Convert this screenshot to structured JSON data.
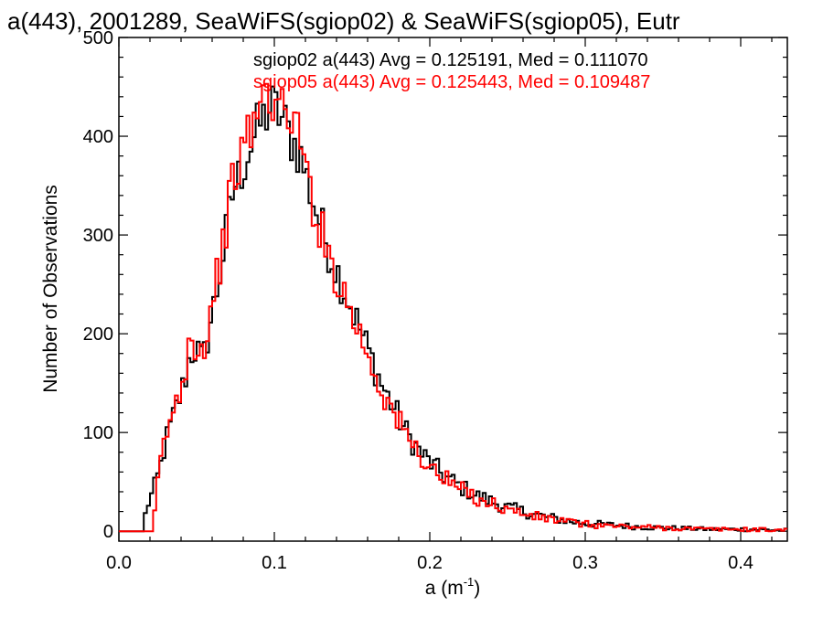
{
  "chart_data": {
    "type": "line",
    "title": "a(443), 2001289, SeaWiFS(sgiop02) & SeaWiFS(sgiop05), Eutr",
    "xlabel": "a (m",
    "xlabel_sup": "-1",
    "xlabel_end": ")",
    "ylabel": "Number of Observations",
    "xlim": [
      0.0,
      0.43
    ],
    "ylim": [
      -10,
      500
    ],
    "x_ticks": [
      0.0,
      0.1,
      0.2,
      0.3,
      0.4
    ],
    "x_tick_labels": [
      "0.0",
      "0.1",
      "0.2",
      "0.3",
      "0.4"
    ],
    "y_ticks": [
      0,
      100,
      200,
      300,
      400,
      500
    ],
    "y_tick_labels": [
      "0",
      "100",
      "200",
      "300",
      "400",
      "500"
    ],
    "legend_placement": "top-right",
    "series": [
      {
        "legend": "sgiop02 a(443) Avg = 0.125191, Med = 0.111070",
        "color": "#000000",
        "points": [
          [
            0.0,
            0
          ],
          [
            0.015,
            0
          ],
          [
            0.018,
            25
          ],
          [
            0.022,
            40
          ],
          [
            0.026,
            60
          ],
          [
            0.03,
            90
          ],
          [
            0.034,
            110
          ],
          [
            0.038,
            130
          ],
          [
            0.042,
            150
          ],
          [
            0.046,
            180
          ],
          [
            0.05,
            185
          ],
          [
            0.054,
            170
          ],
          [
            0.058,
            205
          ],
          [
            0.062,
            235
          ],
          [
            0.066,
            270
          ],
          [
            0.07,
            310
          ],
          [
            0.074,
            350
          ],
          [
            0.078,
            360
          ],
          [
            0.082,
            380
          ],
          [
            0.086,
            395
          ],
          [
            0.09,
            410
          ],
          [
            0.094,
            420
          ],
          [
            0.098,
            430
          ],
          [
            0.102,
            425
          ],
          [
            0.106,
            415
          ],
          [
            0.11,
            400
          ],
          [
            0.114,
            390
          ],
          [
            0.118,
            375
          ],
          [
            0.122,
            350
          ],
          [
            0.126,
            330
          ],
          [
            0.13,
            310
          ],
          [
            0.135,
            285
          ],
          [
            0.14,
            265
          ],
          [
            0.145,
            245
          ],
          [
            0.15,
            225
          ],
          [
            0.155,
            205
          ],
          [
            0.16,
            185
          ],
          [
            0.165,
            165
          ],
          [
            0.17,
            145
          ],
          [
            0.175,
            130
          ],
          [
            0.18,
            115
          ],
          [
            0.185,
            100
          ],
          [
            0.19,
            88
          ],
          [
            0.195,
            78
          ],
          [
            0.2,
            70
          ],
          [
            0.21,
            55
          ],
          [
            0.22,
            45
          ],
          [
            0.23,
            36
          ],
          [
            0.24,
            30
          ],
          [
            0.25,
            24
          ],
          [
            0.26,
            20
          ],
          [
            0.27,
            16
          ],
          [
            0.28,
            13
          ],
          [
            0.29,
            10
          ],
          [
            0.3,
            8
          ],
          [
            0.32,
            6
          ],
          [
            0.34,
            4
          ],
          [
            0.36,
            3
          ],
          [
            0.38,
            2
          ],
          [
            0.4,
            2
          ],
          [
            0.43,
            1
          ]
        ]
      },
      {
        "legend": "sgiop05 a(443) Avg = 0.125443, Med = 0.109487",
        "color": "#ff0000",
        "points": [
          [
            0.0,
            0
          ],
          [
            0.022,
            0
          ],
          [
            0.026,
            65
          ],
          [
            0.03,
            95
          ],
          [
            0.034,
            115
          ],
          [
            0.038,
            135
          ],
          [
            0.042,
            160
          ],
          [
            0.046,
            200
          ],
          [
            0.05,
            190
          ],
          [
            0.054,
            180
          ],
          [
            0.058,
            215
          ],
          [
            0.062,
            250
          ],
          [
            0.066,
            280
          ],
          [
            0.07,
            320
          ],
          [
            0.074,
            360
          ],
          [
            0.078,
            375
          ],
          [
            0.082,
            395
          ],
          [
            0.086,
            410
          ],
          [
            0.09,
            430
          ],
          [
            0.094,
            440
          ],
          [
            0.098,
            445
          ],
          [
            0.102,
            430
          ],
          [
            0.106,
            420
          ],
          [
            0.11,
            430
          ],
          [
            0.114,
            410
          ],
          [
            0.118,
            380
          ],
          [
            0.122,
            355
          ],
          [
            0.126,
            325
          ],
          [
            0.13,
            305
          ],
          [
            0.135,
            280
          ],
          [
            0.14,
            260
          ],
          [
            0.145,
            240
          ],
          [
            0.15,
            220
          ],
          [
            0.155,
            200
          ],
          [
            0.16,
            180
          ],
          [
            0.165,
            160
          ],
          [
            0.17,
            140
          ],
          [
            0.175,
            125
          ],
          [
            0.18,
            110
          ],
          [
            0.185,
            97
          ],
          [
            0.19,
            85
          ],
          [
            0.195,
            75
          ],
          [
            0.2,
            65
          ],
          [
            0.21,
            52
          ],
          [
            0.22,
            42
          ],
          [
            0.23,
            34
          ],
          [
            0.24,
            28
          ],
          [
            0.25,
            22
          ],
          [
            0.26,
            18
          ],
          [
            0.27,
            14
          ],
          [
            0.28,
            12
          ],
          [
            0.29,
            9
          ],
          [
            0.3,
            7
          ],
          [
            0.32,
            5
          ],
          [
            0.34,
            4
          ],
          [
            0.36,
            3
          ],
          [
            0.38,
            2
          ],
          [
            0.4,
            2
          ],
          [
            0.43,
            1
          ]
        ]
      }
    ]
  }
}
